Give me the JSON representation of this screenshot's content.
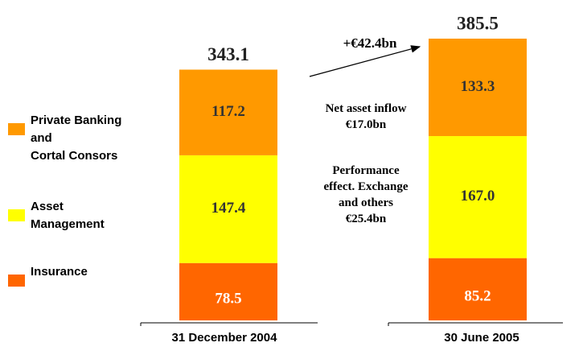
{
  "chart_data": {
    "type": "stacked_bar",
    "categories": [
      "31 December 2004",
      "30 June 2005"
    ],
    "series": [
      {
        "name": "Insurance",
        "color": "#ff6600",
        "values": [
          78.5,
          85.2
        ],
        "value_labels": [
          "78.5",
          "85.2"
        ]
      },
      {
        "name": "Asset\nManagement",
        "color": "#ffff00",
        "values": [
          147.4,
          167.0
        ],
        "value_labels": [
          "147.4",
          "167.0"
        ]
      },
      {
        "name": "Private Banking\nand\nCortal Consors",
        "color": "#ff9900",
        "values": [
          117.2,
          133.3
        ],
        "value_labels": [
          "117.2",
          "133.3"
        ]
      }
    ],
    "totals": [
      343.1,
      385.5
    ],
    "annotations": [
      "+€42.4bn",
      "Net asset inflow\n€17.0bn",
      "Performance\neffect. Exchange\nand others\n€25.4bn"
    ]
  }
}
